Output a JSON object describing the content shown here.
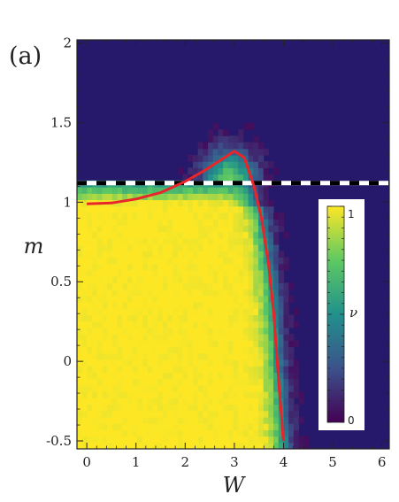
{
  "chart_data": {
    "type": "heatmap",
    "panel_label": "(a)",
    "xlabel": "W",
    "ylabel": "m",
    "xlim": [
      -0.2,
      6.15
    ],
    "ylim": [
      -0.55,
      2.02
    ],
    "xticks": [
      0,
      1,
      2,
      3,
      4,
      5,
      6
    ],
    "yticks": [
      -0.5,
      0,
      0.5,
      1,
      1.5,
      2
    ],
    "xtick_labels": [
      "0",
      "1",
      "2",
      "3",
      "4",
      "5",
      "6"
    ],
    "ytick_labels": [
      "-0.5",
      "0",
      "0.5",
      "1",
      "1.5",
      "2"
    ],
    "heatmap_grid": {
      "nx": 62,
      "ny": 64
    },
    "colorbar": {
      "label": "ν",
      "range": [
        0,
        1
      ],
      "tick_labels": [
        "0",
        "1"
      ],
      "colormap": [
        "#440154",
        "#3b528b",
        "#21918c",
        "#5ec962",
        "#fde725"
      ]
    },
    "background_color": "#26186a",
    "phase_boundary_curve": {
      "color": "#e8262a",
      "x": [
        0,
        0.5,
        1,
        1.5,
        2,
        2.4,
        2.7,
        2.9,
        3.0,
        3.2,
        3.4,
        3.55,
        3.7,
        3.8,
        3.87,
        3.92,
        3.96,
        3.98,
        4.0
      ],
      "y": [
        0.99,
        0.995,
        1.02,
        1.06,
        1.13,
        1.2,
        1.26,
        1.3,
        1.32,
        1.28,
        1.1,
        0.9,
        0.6,
        0.3,
        0.0,
        -0.2,
        -0.35,
        -0.45,
        -0.5
      ]
    },
    "dashed_line": {
      "y": 1.12,
      "colors": [
        "#000000",
        "#ffffff"
      ]
    }
  }
}
